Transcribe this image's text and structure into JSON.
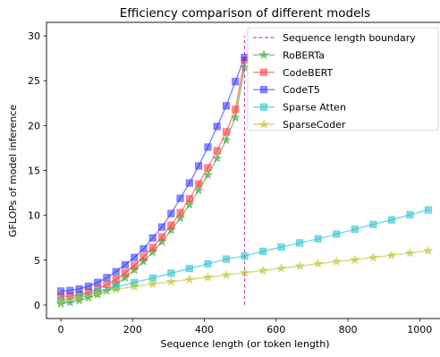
{
  "chart_data": {
    "type": "line",
    "title": "Efficiency comparison of different models",
    "xlabel": "Sequence length (or token length)",
    "ylabel": "GFLOPs of model inference",
    "xlim": [
      -40,
      1064
    ],
    "ylim": [
      -1.5,
      31.5
    ],
    "xticks": [
      0,
      200,
      400,
      600,
      800,
      1000
    ],
    "yticks": [
      0,
      5,
      10,
      15,
      20,
      25,
      30
    ],
    "grid": false,
    "legend_position": "top-right",
    "boundary": {
      "label": "Sequence length boundary",
      "x": 512,
      "y_range": [
        0,
        30
      ],
      "color": "#c04fb0",
      "style": "dashed"
    },
    "series": [
      {
        "name": "RoBERTa",
        "color": "#2ca02c",
        "marker": "star",
        "marker_alpha": 0.55,
        "x": [
          0,
          25.6,
          51.2,
          76.8,
          102.4,
          128,
          153.6,
          179.2,
          204.8,
          230.4,
          256,
          281.6,
          307.2,
          332.8,
          358.4,
          384,
          409.6,
          435.2,
          460.8,
          486.4,
          512
        ],
        "y": [
          0.15,
          0.3,
          0.52,
          0.81,
          1.17,
          1.6,
          2.29,
          3.05,
          3.9,
          4.86,
          5.9,
          7.06,
          8.33,
          9.7,
          11.2,
          12.8,
          14.5,
          16.35,
          18.4,
          20.9,
          26.5
        ]
      },
      {
        "name": "CodeBERT",
        "color": "#ff3030",
        "marker": "square",
        "marker_alpha": 0.55,
        "x": [
          0,
          25.6,
          51.2,
          76.8,
          102.4,
          128,
          153.6,
          179.2,
          204.8,
          230.4,
          256,
          281.6,
          307.2,
          332.8,
          358.4,
          384,
          409.6,
          435.2,
          460.8,
          486.4,
          512
        ],
        "y": [
          0.95,
          1.0,
          1.16,
          1.43,
          1.8,
          2.28,
          2.88,
          3.6,
          4.42,
          5.36,
          6.42,
          7.6,
          8.9,
          10.3,
          11.85,
          13.5,
          15.3,
          17.2,
          19.3,
          21.8,
          27.3
        ]
      },
      {
        "name": "CodeT5",
        "color": "#2a2aff",
        "marker": "square",
        "marker_alpha": 0.55,
        "x": [
          0,
          25.6,
          51.2,
          76.8,
          102.4,
          128,
          153.6,
          179.2,
          204.8,
          230.4,
          256,
          281.6,
          307.2,
          332.8,
          358.4,
          384,
          409.6,
          435.2,
          460.8,
          486.4,
          512
        ],
        "y": [
          1.55,
          1.62,
          1.8,
          2.1,
          2.52,
          3.06,
          3.72,
          4.48,
          5.3,
          6.26,
          7.48,
          8.7,
          10.2,
          11.9,
          13.6,
          15.5,
          17.6,
          19.9,
          22.2,
          24.9,
          27.6
        ]
      },
      {
        "name": "Sparse Atten",
        "color": "#17becf",
        "marker": "square",
        "marker_alpha": 0.55,
        "x": [
          0,
          51.2,
          102.4,
          153.6,
          204.8,
          256,
          307.2,
          358.4,
          409.6,
          460.8,
          512,
          563.2,
          614.4,
          665.6,
          716.8,
          768,
          819.2,
          870.4,
          921.6,
          972.8,
          1024
        ],
        "y": [
          0.5,
          0.99,
          1.49,
          2.0,
          2.51,
          3.02,
          3.55,
          4.07,
          4.6,
          5.12,
          5.46,
          5.99,
          6.46,
          6.93,
          7.38,
          7.91,
          8.44,
          8.99,
          9.49,
          10.07,
          10.6
        ]
      },
      {
        "name": "SparseCoder",
        "color": "#bcbd22",
        "marker": "star",
        "marker_alpha": 0.55,
        "x": [
          0,
          51.2,
          102.4,
          153.6,
          204.8,
          256,
          307.2,
          358.4,
          409.6,
          460.8,
          512,
          563.2,
          614.4,
          665.6,
          716.8,
          768,
          819.2,
          870.4,
          921.6,
          972.8,
          1024
        ],
        "y": [
          0.3,
          0.8,
          1.3,
          1.75,
          2.05,
          2.35,
          2.6,
          2.85,
          3.1,
          3.35,
          3.6,
          3.85,
          4.1,
          4.35,
          4.6,
          4.85,
          5.05,
          5.3,
          5.55,
          5.8,
          6.05
        ]
      }
    ]
  }
}
